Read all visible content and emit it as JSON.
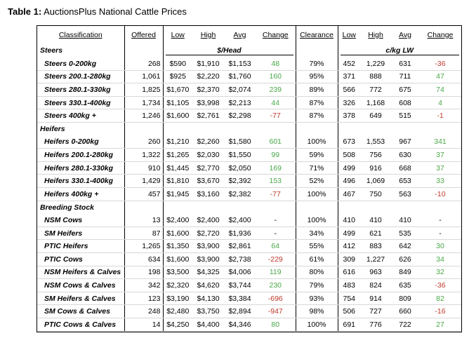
{
  "caption": {
    "prefix": "Table 1:",
    "text": " AuctionsPlus National Cattle Prices"
  },
  "headers": {
    "classification": "Classification",
    "offered": "Offered",
    "low": "Low",
    "high": "High",
    "avg": "Avg",
    "change": "Change",
    "clearance": "Clearance",
    "low2": "Low",
    "high2": "High",
    "avg2": "Avg",
    "change2": "Change"
  },
  "units": {
    "head": "$/Head",
    "lw": "c/kg LW"
  },
  "groups": [
    {
      "name": "Steers",
      "rows": [
        [
          "Steers 0-200kg",
          "268",
          "$590",
          "$1,910",
          "$1,153",
          "48",
          "79%",
          "452",
          "1,229",
          "631",
          "-36"
        ],
        [
          "Steers 200.1-280kg",
          "1,061",
          "$925",
          "$2,220",
          "$1,760",
          "160",
          "95%",
          "371",
          "888",
          "711",
          "47"
        ],
        [
          "Steers 280.1-330kg",
          "1,825",
          "$1,670",
          "$2,370",
          "$2,074",
          "239",
          "89%",
          "566",
          "772",
          "675",
          "74"
        ],
        [
          "Steers 330.1-400kg",
          "1,734",
          "$1,105",
          "$3,998",
          "$2,213",
          "44",
          "87%",
          "326",
          "1,168",
          "608",
          "4"
        ],
        [
          "Steers 400kg +",
          "1,246",
          "$1,600",
          "$2,761",
          "$2,298",
          "-77",
          "87%",
          "378",
          "649",
          "515",
          "-1"
        ]
      ]
    },
    {
      "name": "Heifers",
      "rows": [
        [
          "Heifers 0-200kg",
          "260",
          "$1,210",
          "$2,260",
          "$1,580",
          "601",
          "100%",
          "673",
          "1,553",
          "967",
          "341"
        ],
        [
          "Heifers 200.1-280kg",
          "1,322",
          "$1,265",
          "$2,030",
          "$1,550",
          "99",
          "59%",
          "508",
          "756",
          "630",
          "37"
        ],
        [
          "Heifers 280.1-330kg",
          "910",
          "$1,445",
          "$2,770",
          "$2,050",
          "169",
          "71%",
          "499",
          "916",
          "668",
          "37"
        ],
        [
          "Heifers 330.1-400kg",
          "1,429",
          "$1,810",
          "$3,670",
          "$2,392",
          "153",
          "52%",
          "496",
          "1,069",
          "653",
          "33"
        ],
        [
          "Heifers 400kg +",
          "457",
          "$1,945",
          "$3,160",
          "$2,382",
          "-77",
          "100%",
          "467",
          "750",
          "563",
          "-10"
        ]
      ]
    },
    {
      "name": "Breeding Stock",
      "rows": [
        [
          "NSM Cows",
          "13",
          "$2,400",
          "$2,400",
          "$2,400",
          "-",
          "100%",
          "410",
          "410",
          "410",
          "-"
        ],
        [
          "SM Heifers",
          "87",
          "$1,600",
          "$2,720",
          "$1,936",
          "-",
          "34%",
          "499",
          "621",
          "535",
          "-"
        ],
        [
          "PTIC Heifers",
          "1,265",
          "$1,350",
          "$3,900",
          "$2,861",
          "64",
          "55%",
          "412",
          "883",
          "642",
          "30"
        ],
        [
          "PTIC Cows",
          "634",
          "$1,600",
          "$3,900",
          "$2,738",
          "-229",
          "61%",
          "309",
          "1,227",
          "626",
          "34"
        ],
        [
          "NSM Heifers & Calves",
          "198",
          "$3,500",
          "$4,325",
          "$4,006",
          "119",
          "80%",
          "616",
          "963",
          "849",
          "32"
        ],
        [
          "NSM Cows & Calves",
          "342",
          "$2,320",
          "$4,620",
          "$3,744",
          "230",
          "79%",
          "483",
          "824",
          "635",
          "-36"
        ],
        [
          "SM Heifers & Calves",
          "123",
          "$3,190",
          "$4,130",
          "$3,384",
          "-696",
          "93%",
          "754",
          "914",
          "809",
          "82"
        ],
        [
          "SM Cows & Calves",
          "248",
          "$2,480",
          "$3,750",
          "$2,894",
          "-947",
          "98%",
          "506",
          "727",
          "660",
          "-16"
        ],
        [
          "PTIC Cows & Calves",
          "14",
          "$4,250",
          "$4,400",
          "$4,346",
          "80",
          "100%",
          "691",
          "776",
          "722",
          "27"
        ]
      ]
    }
  ],
  "colors": {
    "positive": "#4aa84a",
    "negative": "#c0392b"
  }
}
